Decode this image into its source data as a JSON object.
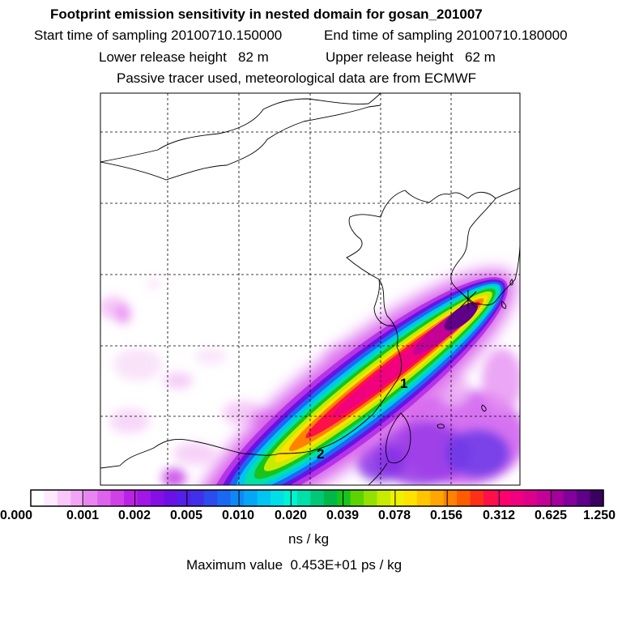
{
  "header": {
    "title": "Footprint emission sensitivity in nested domain for gosan_201007",
    "start_label": "Start time of sampling",
    "start_value": "20100710.150000",
    "end_label": "End time of sampling",
    "end_value": "20100710.180000",
    "lower_label": "Lower release height",
    "lower_value": "82 m",
    "upper_label": "Upper release height",
    "upper_value": "62 m",
    "note": "Passive tracer used, meteorological data are from ECMWF"
  },
  "map": {
    "markers": [
      "1",
      "2"
    ]
  },
  "colorbar": {
    "tick_labels": [
      "0.000",
      "0.001",
      "0.002",
      "0.005",
      "0.010",
      "0.020",
      "0.039",
      "0.078",
      "0.156",
      "0.312",
      "0.625",
      "1.250"
    ],
    "colors": [
      "#ffffff",
      "#fdeafd",
      "#f9c8f9",
      "#f3a5f5",
      "#e985f1",
      "#de63ec",
      "#cf40e8",
      "#bb22e6",
      "#a017e6",
      "#860fe6",
      "#6a12e6",
      "#5320e8",
      "#4030ea",
      "#2c4cee",
      "#1c68f2",
      "#0f88f5",
      "#05a6f6",
      "#00c4f2",
      "#00dfe8",
      "#00f2d4",
      "#00e0a8",
      "#00c878",
      "#00b848",
      "#18c41c",
      "#5bd400",
      "#94e000",
      "#c6ec00",
      "#eef200",
      "#ffe200",
      "#ffc600",
      "#ffa600",
      "#ff8200",
      "#ff5c00",
      "#ff3018",
      "#ff1048",
      "#ff006e",
      "#f0007e",
      "#dc008a",
      "#c40096",
      "#a4009c",
      "#82009c",
      "#5e0088",
      "#3a0060"
    ],
    "unit": "ns / kg"
  },
  "footer": {
    "max_label": "Maximum value",
    "max_value": "0.453E+01 ps / kg"
  }
}
